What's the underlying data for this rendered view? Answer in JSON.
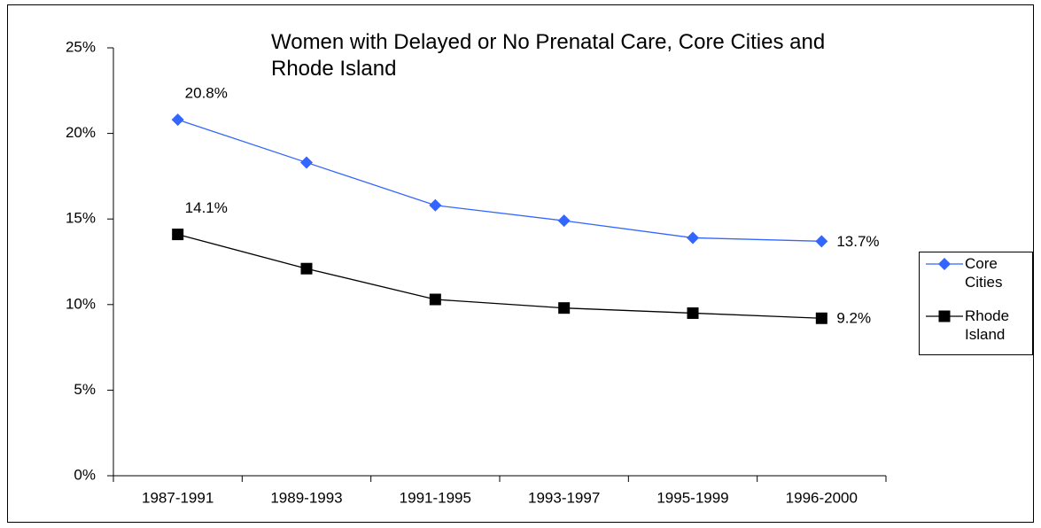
{
  "chart_data": {
    "type": "line",
    "title": "Women with Delayed or No Prenatal Care, Core Cities and Rhode Island",
    "categories": [
      "1987-1991",
      "1989-1993",
      "1991-1995",
      "1993-1997",
      "1995-1999",
      "1996-2000"
    ],
    "series": [
      {
        "name": "Core Cities",
        "color": "#3366ff",
        "marker": "diamond",
        "values": [
          20.8,
          18.3,
          15.8,
          14.9,
          13.9,
          13.7
        ],
        "value_labels": [
          "20.8%",
          null,
          null,
          null,
          null,
          "13.7%"
        ]
      },
      {
        "name": "Rhode Island",
        "color": "#000000",
        "marker": "square",
        "values": [
          14.1,
          12.1,
          10.3,
          9.8,
          9.5,
          9.2
        ],
        "value_labels": [
          "14.1%",
          null,
          null,
          null,
          null,
          "9.2%"
        ]
      }
    ],
    "ylim": [
      0,
      25
    ],
    "yticks": [
      {
        "value": 0,
        "label": "0%"
      },
      {
        "value": 5,
        "label": "5%"
      },
      {
        "value": 10,
        "label": "10%"
      },
      {
        "value": 15,
        "label": "15%"
      },
      {
        "value": 20,
        "label": "20%"
      },
      {
        "value": 25,
        "label": "25%"
      }
    ],
    "grid": false,
    "legend": "right"
  }
}
